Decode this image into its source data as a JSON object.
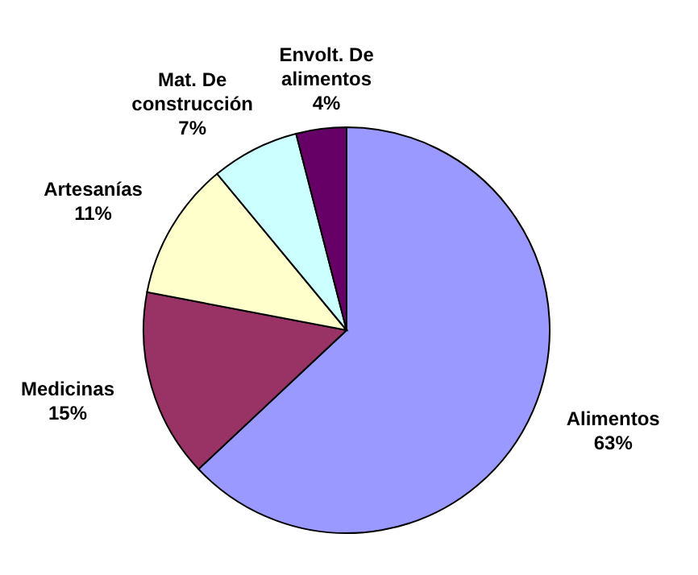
{
  "chart_data": {
    "type": "pie",
    "categories": [
      "Alimentos",
      "Medicinas",
      "Artesanías",
      "Mat. De construcción",
      "Envolt. De alimentos"
    ],
    "values": [
      63,
      15,
      11,
      7,
      4
    ],
    "value_labels": [
      "63%",
      "15%",
      "11%",
      "7%",
      "4%"
    ],
    "colors": [
      "#9999ff",
      "#993366",
      "#ffffcc",
      "#ccffff",
      "#660066"
    ]
  }
}
